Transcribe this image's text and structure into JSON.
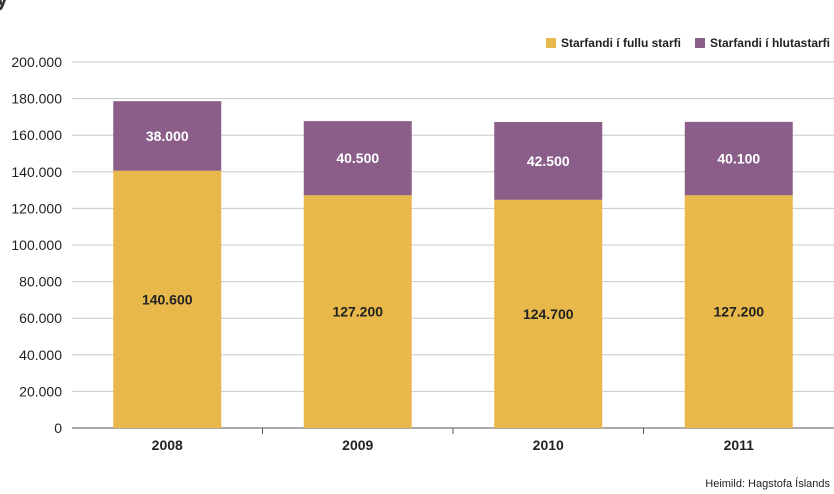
{
  "chart_data": {
    "type": "bar",
    "stacked": true,
    "title": "",
    "categories": [
      "2008",
      "2009",
      "2010",
      "2011"
    ],
    "series": [
      {
        "name": "Starfandi í fullu starfi",
        "values": [
          140600,
          127200,
          124700,
          127200
        ],
        "labels": [
          "140.600",
          "127.200",
          "124.700",
          "127.200"
        ],
        "color": "#e9b84a"
      },
      {
        "name": "Starfandi í hlutastarfi",
        "values": [
          38000,
          40500,
          42500,
          40100
        ],
        "labels": [
          "38.000",
          "40.500",
          "42.500",
          "40.100"
        ],
        "color": "#8a5e88"
      }
    ],
    "y_ticks": [
      "0",
      "20.000",
      "40.000",
      "60.000",
      "80.000",
      "100.000",
      "120.000",
      "140.000",
      "160.000",
      "180.000",
      "200.000"
    ],
    "ylim": [
      0,
      200000
    ],
    "grid": true,
    "legend_position": "top-right"
  },
  "source": "Heimild: Hagstofa Íslands"
}
